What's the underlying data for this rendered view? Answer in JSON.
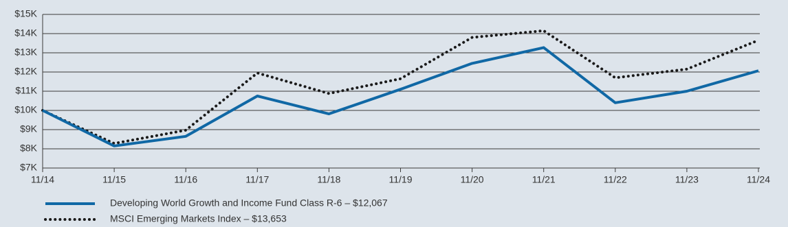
{
  "chart_data": {
    "type": "line",
    "categories": [
      "11/14",
      "11/15",
      "11/16",
      "11/17",
      "11/18",
      "11/19",
      "11/20",
      "11/21",
      "11/22",
      "11/23",
      "11/24"
    ],
    "series": [
      {
        "name": "Developing World Growth and Income Fund Class R-6 – $12,067",
        "color": "#1068a5",
        "style": "solid",
        "values": [
          10000,
          8150,
          8650,
          10750,
          9820,
          11100,
          12450,
          13270,
          10400,
          11000,
          12067
        ]
      },
      {
        "name": "MSCI Emerging Markets Index – $13,653",
        "color": "#1a1a1a",
        "style": "dotted",
        "values": [
          10000,
          8280,
          8970,
          11950,
          10880,
          11650,
          13800,
          14150,
          11700,
          12150,
          13653
        ]
      }
    ],
    "ylim": [
      7000,
      15000
    ],
    "yticks": [
      {
        "value": 7000,
        "label": "$7K"
      },
      {
        "value": 8000,
        "label": "$8K"
      },
      {
        "value": 9000,
        "label": "$9K"
      },
      {
        "value": 10000,
        "label": "$10K"
      },
      {
        "value": 11000,
        "label": "$11K"
      },
      {
        "value": 12000,
        "label": "$12K"
      },
      {
        "value": 13000,
        "label": "$13K"
      },
      {
        "value": 14000,
        "label": "$14K"
      },
      {
        "value": 15000,
        "label": "$15K"
      }
    ],
    "grid": true
  }
}
